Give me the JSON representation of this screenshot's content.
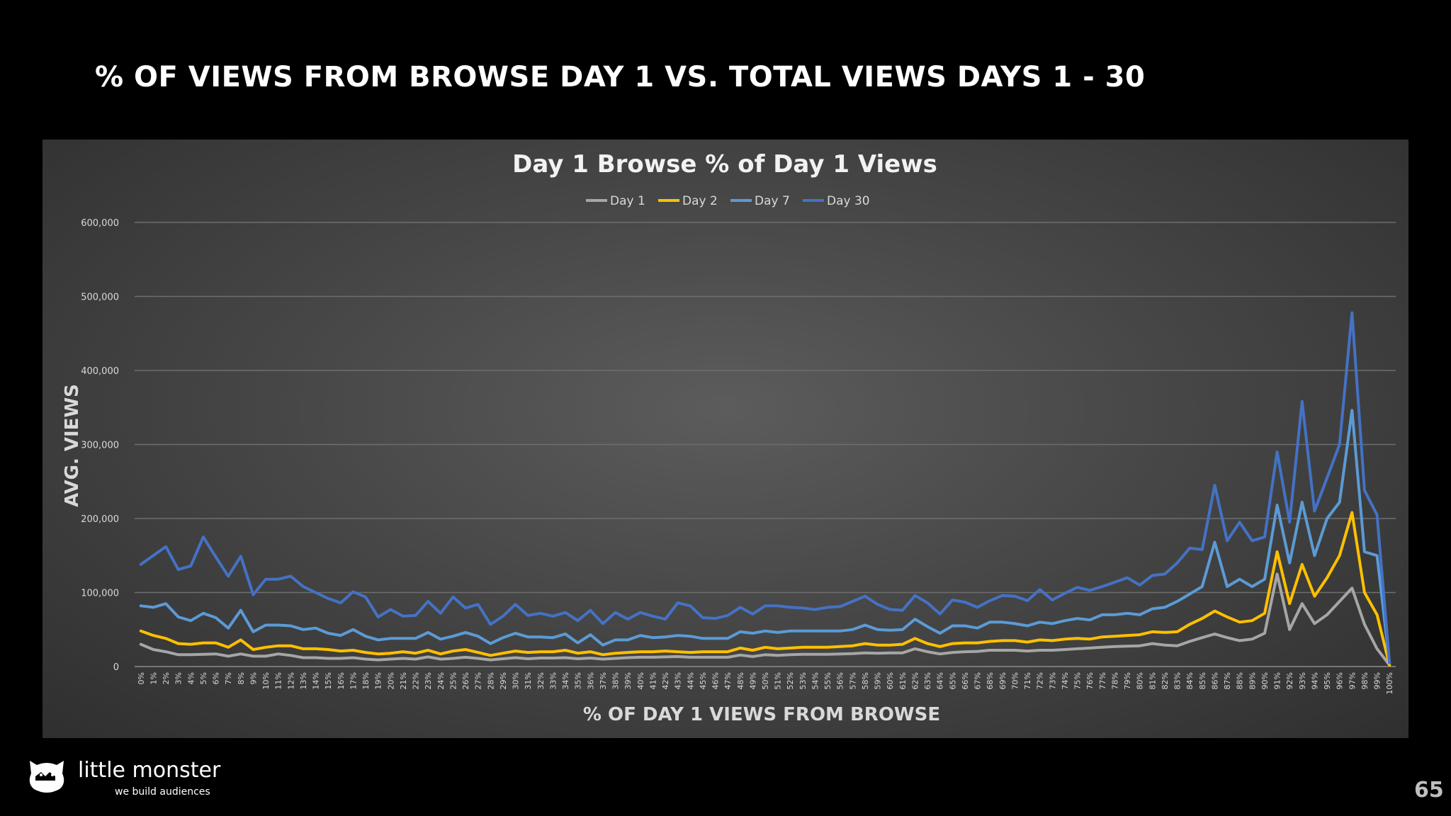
{
  "slide": {
    "title": "% OF VIEWS FROM BROWSE DAY 1 VS. TOTAL VIEWS DAYS 1 - 30",
    "page_number": "65"
  },
  "logo": {
    "name": "little monster",
    "tagline": "we build audiences",
    "icon": "monster-cat-icon"
  },
  "colors": {
    "day1": "#a6a6a6",
    "day2": "#ffc000",
    "day7": "#5b9bd5",
    "day30": "#4472c4"
  },
  "chart_data": {
    "type": "line",
    "title": "Day 1 Browse % of Day 1 Views",
    "xlabel": "% OF DAY 1 VIEWS FROM BROWSE",
    "ylabel": "AVG. VIEWS",
    "ylim": [
      0,
      600000
    ],
    "yticks": [
      0,
      100000,
      200000,
      300000,
      400000,
      500000,
      600000
    ],
    "ytick_labels": [
      "0",
      "100,000",
      "200,000",
      "300,000",
      "400,000",
      "500,000",
      "600,000"
    ],
    "legend_position": "top-center",
    "grid": true,
    "x": [
      "0%",
      "1%",
      "2%",
      "3%",
      "4%",
      "5%",
      "6%",
      "7%",
      "8%",
      "9%",
      "10%",
      "11%",
      "12%",
      "13%",
      "14%",
      "15%",
      "16%",
      "17%",
      "18%",
      "19%",
      "20%",
      "21%",
      "22%",
      "23%",
      "24%",
      "25%",
      "26%",
      "27%",
      "28%",
      "29%",
      "30%",
      "31%",
      "32%",
      "33%",
      "34%",
      "35%",
      "36%",
      "37%",
      "38%",
      "39%",
      "40%",
      "41%",
      "42%",
      "43%",
      "44%",
      "45%",
      "46%",
      "47%",
      "48%",
      "49%",
      "50%",
      "51%",
      "52%",
      "53%",
      "54%",
      "55%",
      "56%",
      "57%",
      "58%",
      "59%",
      "60%",
      "61%",
      "62%",
      "63%",
      "64%",
      "65%",
      "66%",
      "67%",
      "68%",
      "69%",
      "70%",
      "71%",
      "72%",
      "73%",
      "74%",
      "75%",
      "76%",
      "77%",
      "78%",
      "79%",
      "80%",
      "81%",
      "82%",
      "83%",
      "84%",
      "85%",
      "86%",
      "87%",
      "88%",
      "89%",
      "90%",
      "91%",
      "92%",
      "93%",
      "94%",
      "95%",
      "96%",
      "97%",
      "98%",
      "99%",
      "100%"
    ],
    "series": [
      {
        "name": "Day 1",
        "values": [
          30000,
          23000,
          20000,
          16000,
          16000,
          16500,
          17000,
          14000,
          17000,
          14000,
          14000,
          17000,
          15000,
          12000,
          12000,
          11000,
          11000,
          12000,
          10000,
          9000,
          10000,
          11000,
          10000,
          13000,
          10000,
          11000,
          12500,
          11000,
          9000,
          10500,
          12000,
          10500,
          11500,
          11500,
          12000,
          10500,
          11500,
          10000,
          11000,
          12000,
          12500,
          12500,
          13000,
          13500,
          12500,
          12500,
          12500,
          12500,
          15500,
          13500,
          16000,
          15000,
          16000,
          16500,
          16500,
          16500,
          17000,
          17500,
          18500,
          18000,
          18500,
          18500,
          24000,
          20000,
          17000,
          19000,
          20000,
          20500,
          22000,
          22000,
          22000,
          21000,
          22000,
          22000,
          23000,
          24000,
          25000,
          26000,
          27000,
          27500,
          28000,
          31000,
          29000,
          28000,
          34000,
          39000,
          44000,
          39000,
          35000,
          37000,
          45000,
          125000,
          50000,
          85000,
          58000,
          70000,
          88000,
          106000,
          57000,
          24000,
          2000
        ]
      },
      {
        "name": "Day 2",
        "values": [
          48000,
          42000,
          38000,
          31000,
          30000,
          32000,
          32000,
          26000,
          36000,
          23000,
          26000,
          28000,
          28000,
          24000,
          24000,
          23000,
          21000,
          22000,
          19000,
          17000,
          18000,
          20000,
          18000,
          22000,
          17000,
          21000,
          23000,
          19000,
          15000,
          18000,
          21000,
          19000,
          20000,
          20000,
          22000,
          18000,
          20000,
          16000,
          18000,
          19000,
          20000,
          20000,
          21000,
          20000,
          19000,
          20000,
          20000,
          20000,
          25000,
          22000,
          26000,
          24000,
          25000,
          26000,
          26000,
          26000,
          27000,
          28000,
          31000,
          29000,
          29000,
          30000,
          38000,
          31000,
          27000,
          31000,
          32000,
          32000,
          34000,
          35000,
          35000,
          33000,
          36000,
          35000,
          37000,
          38000,
          37000,
          40000,
          41000,
          42000,
          43000,
          47000,
          46000,
          47000,
          57000,
          65000,
          75000,
          67000,
          60000,
          62000,
          72000,
          155000,
          85000,
          138000,
          95000,
          120000,
          150000,
          208000,
          100000,
          70000,
          2000
        ]
      },
      {
        "name": "Day 7",
        "values": [
          82000,
          80000,
          85000,
          67000,
          62000,
          72000,
          66000,
          52000,
          76000,
          47000,
          56000,
          56000,
          55000,
          50000,
          52000,
          45000,
          42000,
          50000,
          41000,
          36000,
          38000,
          38000,
          38000,
          46000,
          37000,
          41000,
          46000,
          41000,
          31000,
          39000,
          45000,
          40000,
          40000,
          39000,
          44000,
          32000,
          43000,
          29000,
          36000,
          36000,
          42000,
          39000,
          40000,
          42000,
          41000,
          38000,
          38000,
          38000,
          47000,
          45000,
          48000,
          46000,
          48000,
          48000,
          48000,
          48000,
          48000,
          50000,
          56000,
          50000,
          49000,
          50000,
          64000,
          54000,
          45000,
          55000,
          55000,
          52000,
          60000,
          60000,
          58000,
          55000,
          60000,
          58000,
          62000,
          65000,
          63000,
          70000,
          70000,
          72000,
          70000,
          78000,
          80000,
          88000,
          98000,
          108000,
          168000,
          108000,
          118000,
          108000,
          118000,
          218000,
          140000,
          222000,
          150000,
          200000,
          222000,
          346000,
          155000,
          150000,
          5000
        ]
      },
      {
        "name": "Day 30",
        "values": [
          138000,
          150000,
          162000,
          131000,
          136000,
          175000,
          148000,
          122000,
          149000,
          97000,
          118000,
          118000,
          122000,
          108000,
          100000,
          92000,
          86000,
          101000,
          94000,
          67000,
          77000,
          68000,
          69000,
          88000,
          72000,
          94000,
          79000,
          84000,
          57000,
          68000,
          84000,
          69000,
          72000,
          68000,
          73000,
          62000,
          76000,
          58000,
          73000,
          64000,
          73000,
          68000,
          64000,
          86000,
          82000,
          66000,
          65000,
          69000,
          80000,
          71000,
          82000,
          82000,
          80000,
          79000,
          77000,
          80000,
          81000,
          88000,
          95000,
          84000,
          77000,
          76000,
          96000,
          86000,
          71000,
          90000,
          87000,
          80000,
          89000,
          96000,
          95000,
          89000,
          104000,
          90000,
          99000,
          107000,
          103000,
          108000,
          114000,
          120000,
          110000,
          123000,
          125000,
          140000,
          160000,
          158000,
          245000,
          170000,
          195000,
          170000,
          175000,
          290000,
          195000,
          358000,
          210000,
          255000,
          300000,
          478000,
          238000,
          205000,
          5000
        ]
      }
    ]
  }
}
